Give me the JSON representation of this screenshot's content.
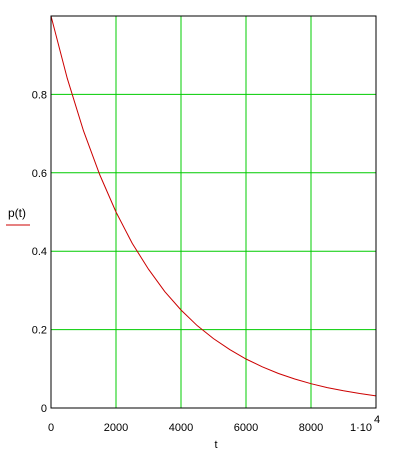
{
  "chart_data": {
    "type": "line",
    "title": "",
    "xlabel": "t",
    "ylabel": "p(t)",
    "xlim": [
      0,
      10000
    ],
    "ylim": [
      0,
      1
    ],
    "x_ticks": [
      {
        "value": 0,
        "label": "0"
      },
      {
        "value": 2000,
        "label": "2000"
      },
      {
        "value": 4000,
        "label": "4000"
      },
      {
        "value": 6000,
        "label": "6000"
      },
      {
        "value": 8000,
        "label": "8000"
      },
      {
        "value": 10000,
        "label": "1·10",
        "exponent": "4"
      }
    ],
    "y_ticks": [
      {
        "value": 0,
        "label": "0"
      },
      {
        "value": 0.2,
        "label": "0.2"
      },
      {
        "value": 0.4,
        "label": "0.4"
      },
      {
        "value": 0.6,
        "label": "0.6"
      },
      {
        "value": 0.8,
        "label": "0.8"
      }
    ],
    "grid": true,
    "colors": {
      "grid": "#00cc00",
      "series": "#cc0000",
      "axes": "#000000"
    },
    "series": [
      {
        "x": [
          0,
          500,
          1000,
          1500,
          2000,
          2500,
          3000,
          3500,
          4000,
          4500,
          5000,
          5500,
          6000,
          6500,
          7000,
          7500,
          8000,
          8500,
          9000,
          9500,
          10000
        ],
        "y": [
          1.0,
          0.841,
          0.707,
          0.595,
          0.5,
          0.42,
          0.354,
          0.297,
          0.25,
          0.21,
          0.177,
          0.149,
          0.125,
          0.105,
          0.088,
          0.074,
          0.062,
          0.052,
          0.044,
          0.037,
          0.031
        ]
      }
    ]
  }
}
